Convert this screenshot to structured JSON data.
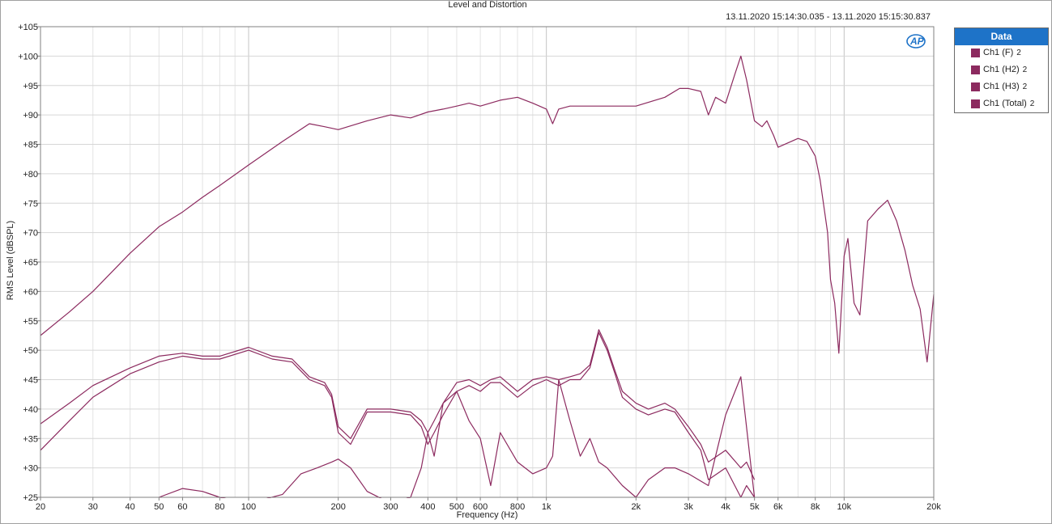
{
  "chart_data": {
    "type": "line",
    "title": "Level and Distortion",
    "timestamp": "13.11.2020 15:14:30.035 - 13.11.2020 15:15:30.837",
    "logo": "AP",
    "xlabel": "Frequency (Hz)",
    "ylabel": "RMS Level (dBSPL)",
    "xscale": "log",
    "xlim": [
      20,
      20000
    ],
    "ylim": [
      25,
      105
    ],
    "grid": true,
    "legend_position": "right",
    "legend_title": "Data",
    "x_ticks": [
      {
        "value": 20,
        "label": "20"
      },
      {
        "value": 30,
        "label": "30"
      },
      {
        "value": 40,
        "label": "40"
      },
      {
        "value": 50,
        "label": "50"
      },
      {
        "value": 60,
        "label": "60"
      },
      {
        "value": 80,
        "label": "80"
      },
      {
        "value": 100,
        "label": "100"
      },
      {
        "value": 200,
        "label": "200"
      },
      {
        "value": 300,
        "label": "300"
      },
      {
        "value": 400,
        "label": "400"
      },
      {
        "value": 500,
        "label": "500"
      },
      {
        "value": 600,
        "label": "600"
      },
      {
        "value": 800,
        "label": "800"
      },
      {
        "value": 1000,
        "label": "1k"
      },
      {
        "value": 2000,
        "label": "2k"
      },
      {
        "value": 3000,
        "label": "3k"
      },
      {
        "value": 4000,
        "label": "4k"
      },
      {
        "value": 5000,
        "label": "5k"
      },
      {
        "value": 6000,
        "label": "6k"
      },
      {
        "value": 8000,
        "label": "8k"
      },
      {
        "value": 10000,
        "label": "10k"
      },
      {
        "value": 20000,
        "label": "20k"
      }
    ],
    "y_ticks": [
      {
        "value": 105,
        "label": "+105"
      },
      {
        "value": 100,
        "label": "+100"
      },
      {
        "value": 95,
        "label": "+95"
      },
      {
        "value": 90,
        "label": "+90"
      },
      {
        "value": 85,
        "label": "+85"
      },
      {
        "value": 80,
        "label": "+80"
      },
      {
        "value": 75,
        "label": "+75"
      },
      {
        "value": 70,
        "label": "+70"
      },
      {
        "value": 65,
        "label": "+65"
      },
      {
        "value": 60,
        "label": "+60"
      },
      {
        "value": 55,
        "label": "+55"
      },
      {
        "value": 50,
        "label": "+50"
      },
      {
        "value": 45,
        "label": "+45"
      },
      {
        "value": 40,
        "label": "+40"
      },
      {
        "value": 35,
        "label": "+35"
      },
      {
        "value": 30,
        "label": "+30"
      },
      {
        "value": 25,
        "label": "+25"
      }
    ],
    "series": [
      {
        "name": "Ch1 (F)",
        "channel": "2",
        "color": "#8c2a5f",
        "x": [
          20,
          25,
          30,
          40,
          50,
          60,
          70,
          80,
          100,
          130,
          160,
          180,
          200,
          250,
          300,
          350,
          400,
          450,
          500,
          550,
          600,
          700,
          800,
          900,
          1000,
          1050,
          1100,
          1200,
          1400,
          1600,
          1800,
          2000,
          2500,
          2800,
          3000,
          3300,
          3500,
          3700,
          4000,
          4300,
          4500,
          4700,
          5000,
          5300,
          5500,
          5800,
          6000,
          7000,
          7500,
          8000,
          8300,
          8800,
          9000,
          9300,
          9600,
          10000,
          10300,
          10800,
          11300,
          12000,
          13000,
          14000,
          15000,
          16000,
          17000,
          18000,
          19000,
          20000
        ],
        "y": [
          52.5,
          56.5,
          60,
          66.5,
          71,
          73.5,
          76,
          78,
          81.5,
          85.5,
          88.5,
          88,
          87.5,
          89,
          90,
          89.5,
          90.5,
          91,
          91.5,
          92,
          91.5,
          92.5,
          93,
          92,
          91,
          88.5,
          91,
          91.5,
          91.5,
          91.5,
          91.5,
          91.5,
          93,
          94.5,
          94.5,
          94,
          90,
          93,
          92,
          97,
          100,
          96,
          89,
          88,
          89,
          86.5,
          84.5,
          86,
          85.5,
          83,
          79,
          70,
          62,
          58,
          49.5,
          66,
          69,
          58,
          56,
          72,
          74,
          75.5,
          72,
          67,
          61,
          57,
          48,
          59.5
        ]
      },
      {
        "name": "Ch1 (H2)",
        "channel": "2",
        "color": "#8c2a5f",
        "x": [
          20,
          25,
          30,
          40,
          50,
          60,
          70,
          80,
          100,
          120,
          140,
          160,
          180,
          190,
          200,
          220,
          250,
          300,
          350,
          380,
          400,
          420,
          450,
          500,
          550,
          600,
          650,
          700,
          800,
          900,
          1000,
          1100,
          1200,
          1300,
          1400,
          1450,
          1500,
          1600,
          1700,
          1800,
          2000,
          2200,
          2500,
          2700,
          3000,
          3300,
          3500,
          4000,
          4500,
          4700,
          5000
        ],
        "y": [
          33,
          38,
          42,
          46,
          48,
          49,
          48.5,
          48.5,
          50,
          48.5,
          48,
          45,
          44,
          42,
          36,
          34,
          39.5,
          39.5,
          39,
          37,
          34,
          36,
          39,
          43,
          44,
          43,
          44.5,
          44.5,
          42,
          44,
          45,
          44,
          45,
          45,
          47,
          50,
          53,
          50,
          46,
          42,
          40,
          39,
          40,
          39.5,
          36,
          33,
          28,
          30,
          25,
          27,
          25
        ]
      },
      {
        "name": "Ch1 (H3)",
        "channel": "2",
        "color": "#8c2a5f",
        "x": [
          50,
          60,
          70,
          80,
          100,
          130,
          150,
          170,
          190,
          200,
          220,
          250,
          300,
          350,
          380,
          400,
          420,
          450,
          500,
          550,
          600,
          650,
          700,
          800,
          900,
          1000,
          1050,
          1100,
          1200,
          1300,
          1400,
          1500,
          1600,
          1800,
          2000,
          2200,
          2500,
          2700,
          3000,
          3500,
          4000,
          4500,
          5000
        ],
        "y": [
          25,
          26.5,
          26,
          25,
          24,
          25.5,
          29,
          30,
          31,
          31.5,
          30,
          26,
          24,
          25,
          30,
          36,
          32,
          41,
          43,
          38,
          35,
          27,
          36,
          31,
          29,
          30,
          32,
          45,
          38,
          32,
          35,
          31,
          30,
          27,
          25,
          28,
          30,
          30,
          29,
          27,
          39,
          45.5,
          25
        ]
      },
      {
        "name": "Ch1 (Total)",
        "channel": "2",
        "color": "#8c2a5f",
        "x": [
          20,
          25,
          30,
          40,
          50,
          60,
          70,
          80,
          100,
          120,
          140,
          160,
          180,
          190,
          200,
          220,
          250,
          300,
          350,
          380,
          400,
          420,
          450,
          500,
          550,
          600,
          650,
          700,
          800,
          900,
          1000,
          1100,
          1200,
          1300,
          1400,
          1450,
          1500,
          1600,
          1700,
          1800,
          2000,
          2200,
          2500,
          2700,
          3000,
          3300,
          3500,
          4000,
          4500,
          4700,
          5000
        ],
        "y": [
          37.5,
          41,
          44,
          47,
          49,
          49.5,
          49,
          49,
          50.5,
          49,
          48.5,
          45.5,
          44.5,
          42.5,
          37,
          35,
          40,
          40,
          39.5,
          38,
          36,
          38,
          41,
          44.5,
          45,
          44,
          45,
          45.5,
          43,
          45,
          45.5,
          45,
          45.5,
          46,
          47.5,
          50.5,
          53.5,
          50.5,
          46.5,
          43,
          41,
          40,
          41,
          40,
          37,
          34,
          31,
          33,
          30,
          31,
          28
        ]
      }
    ]
  }
}
